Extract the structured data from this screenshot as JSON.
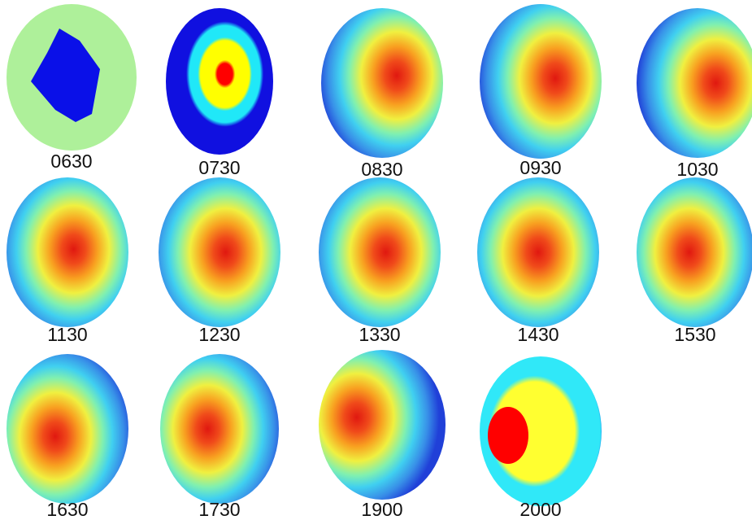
{
  "panels": [
    {
      "label": "0630"
    },
    {
      "label": "0730"
    },
    {
      "label": "0830"
    },
    {
      "label": "0930"
    },
    {
      "label": "1030"
    },
    {
      "label": "1130"
    },
    {
      "label": "1230"
    },
    {
      "label": "1330"
    },
    {
      "label": "1430"
    },
    {
      "label": "1530"
    },
    {
      "label": "1630"
    },
    {
      "label": "1730"
    },
    {
      "label": "1900"
    },
    {
      "label": "2000"
    }
  ]
}
